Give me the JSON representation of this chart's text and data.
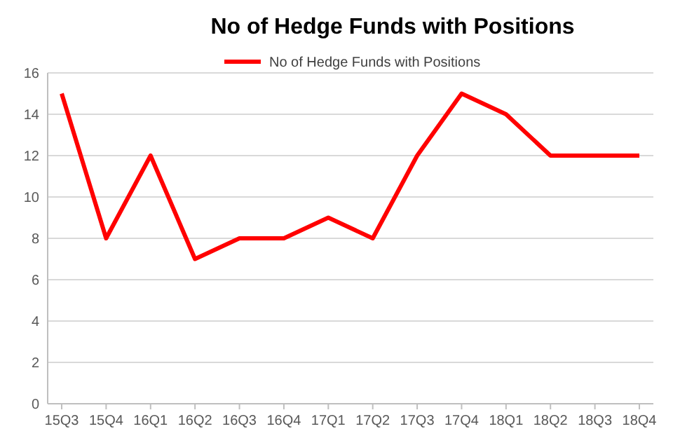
{
  "chart_data": {
    "type": "line",
    "title": "No of Hedge Funds with Positions",
    "categories": [
      "15Q3",
      "15Q4",
      "16Q1",
      "16Q2",
      "16Q3",
      "16Q4",
      "17Q1",
      "17Q2",
      "17Q3",
      "17Q4",
      "18Q1",
      "18Q2",
      "18Q3",
      "18Q4"
    ],
    "series": [
      {
        "name": "No of Hedge Funds with Positions",
        "color": "#ff0000",
        "values": [
          15,
          8,
          12,
          7,
          8,
          8,
          9,
          8,
          12,
          15,
          14,
          12,
          12,
          12
        ]
      }
    ],
    "ylim": [
      0,
      16
    ],
    "yticks": [
      0,
      2,
      4,
      6,
      8,
      10,
      12,
      14,
      16
    ],
    "grid": "y",
    "legend": "top",
    "marker": "none",
    "line_style": "solid"
  }
}
